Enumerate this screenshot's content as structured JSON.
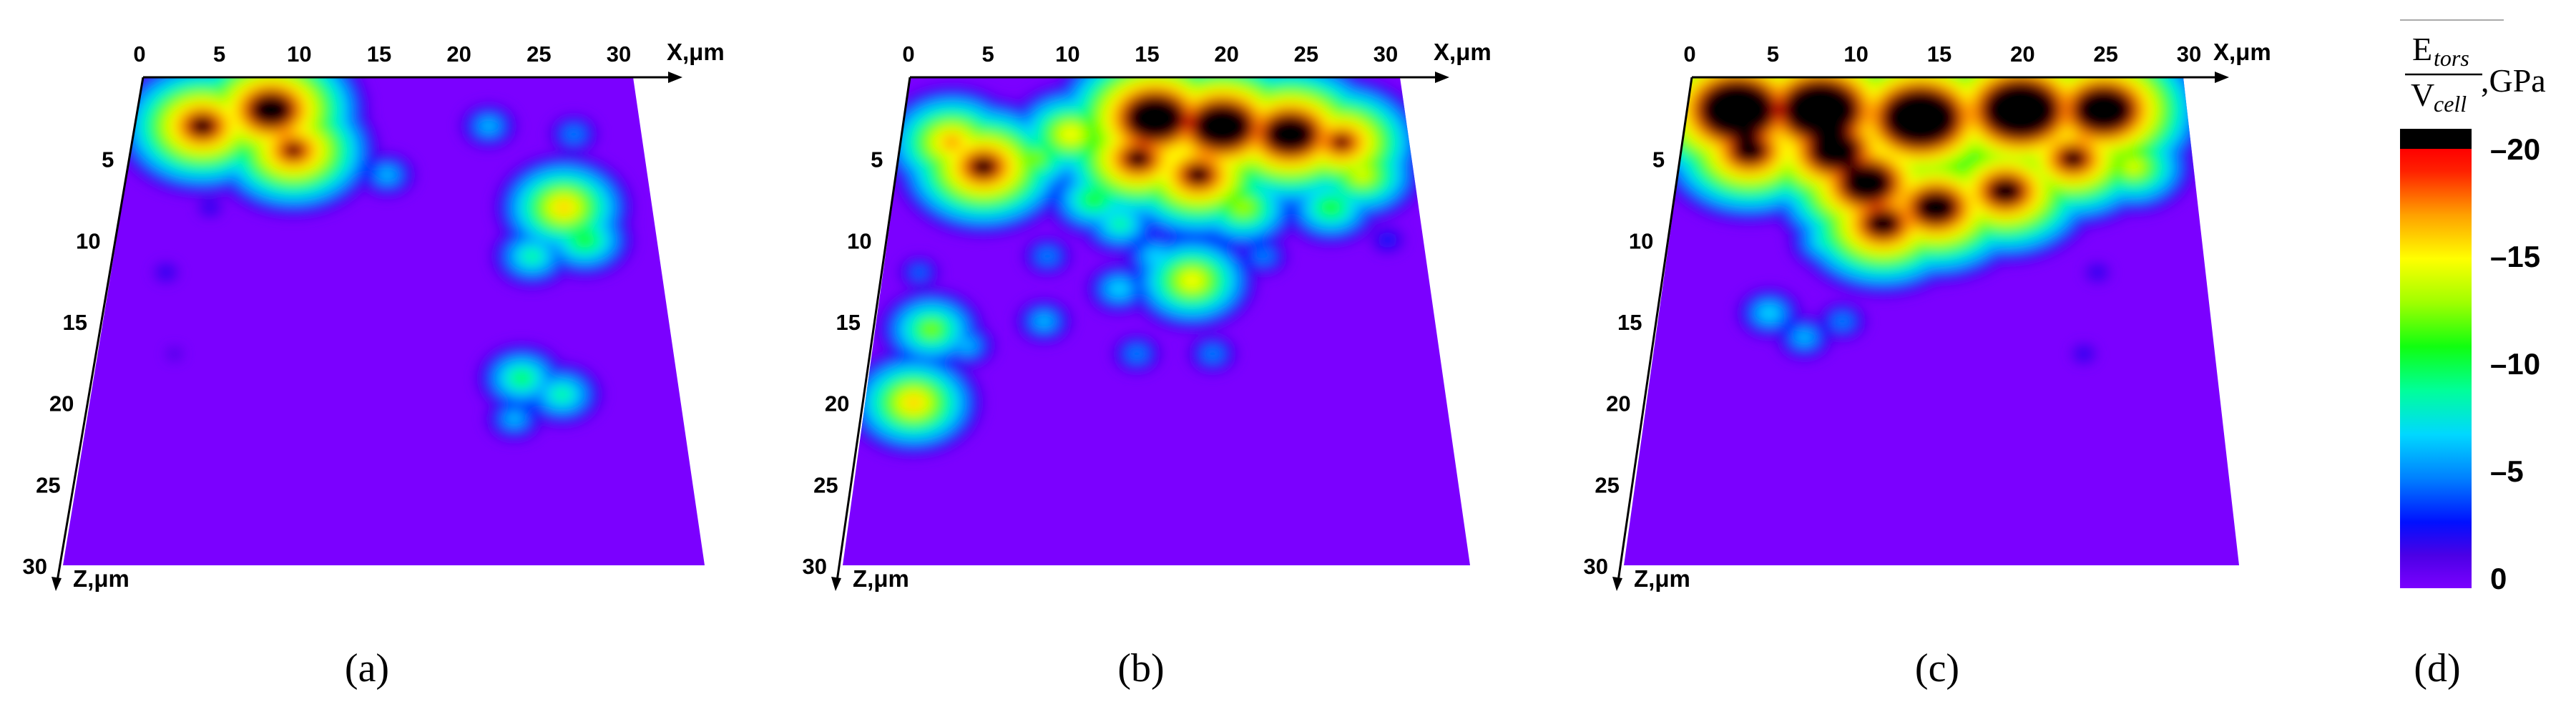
{
  "chart_data": [
    {
      "type": "heatmap",
      "panel_label": "(a)",
      "x_axis": {
        "label": "X,",
        "unit": "μm",
        "ticks": [
          0,
          5,
          10,
          15,
          20,
          25,
          30
        ],
        "range": [
          0,
          30
        ]
      },
      "z_axis": {
        "label": "Z,",
        "unit": "μm",
        "ticks": [
          5,
          10,
          15,
          20,
          25,
          30
        ],
        "range": [
          0,
          30
        ]
      },
      "hotspots": [
        {
          "x": 8,
          "z": 2,
          "value": 24
        },
        {
          "x": 4,
          "z": 3,
          "value": 22
        },
        {
          "x": 9.5,
          "z": 4.5,
          "value": 21
        },
        {
          "x": 12,
          "z": 5,
          "value": 9
        },
        {
          "x": 15,
          "z": 6,
          "value": 7
        },
        {
          "x": 21,
          "z": 3,
          "value": 7
        },
        {
          "x": 26,
          "z": 3.5,
          "value": 6
        },
        {
          "x": 25,
          "z": 8,
          "value": 17
        },
        {
          "x": 26,
          "z": 10,
          "value": 12
        },
        {
          "x": 23,
          "z": 11,
          "value": 10
        },
        {
          "x": 22,
          "z": 18.5,
          "value": 11
        },
        {
          "x": 24,
          "z": 19.5,
          "value": 10
        },
        {
          "x": 21.5,
          "z": 21,
          "value": 7
        },
        {
          "x": 2,
          "z": 6,
          "value": 3
        },
        {
          "x": 5,
          "z": 8,
          "value": 3
        },
        {
          "x": 3,
          "z": 12,
          "value": 3
        },
        {
          "x": 4,
          "z": 17,
          "value": 2
        }
      ]
    },
    {
      "type": "heatmap",
      "panel_label": "(b)",
      "x_axis": {
        "label": "X,",
        "unit": "μm",
        "ticks": [
          0,
          5,
          10,
          15,
          20,
          25,
          30
        ],
        "range": [
          0,
          30
        ]
      },
      "z_axis": {
        "label": "Z,",
        "unit": "μm",
        "ticks": [
          5,
          10,
          15,
          20,
          25,
          30
        ],
        "range": [
          0,
          30
        ]
      },
      "hotspots": [
        {
          "x": 15,
          "z": 2.5,
          "value": 26
        },
        {
          "x": 19,
          "z": 3,
          "value": 26
        },
        {
          "x": 23,
          "z": 3.5,
          "value": 25
        },
        {
          "x": 14,
          "z": 5,
          "value": 22
        },
        {
          "x": 17.5,
          "z": 6,
          "value": 22
        },
        {
          "x": 26,
          "z": 4,
          "value": 21
        },
        {
          "x": 5,
          "z": 5.5,
          "value": 22
        },
        {
          "x": 3,
          "z": 4,
          "value": 18
        },
        {
          "x": 10,
          "z": 3.5,
          "value": 16
        },
        {
          "x": 8,
          "z": 5,
          "value": 13
        },
        {
          "x": 11.5,
          "z": 7.5,
          "value": 12
        },
        {
          "x": 13,
          "z": 9,
          "value": 10
        },
        {
          "x": 20,
          "z": 8,
          "value": 14
        },
        {
          "x": 25,
          "z": 8,
          "value": 12
        },
        {
          "x": 27,
          "z": 6,
          "value": 15
        },
        {
          "x": 17,
          "z": 12.5,
          "value": 16
        },
        {
          "x": 15,
          "z": 11,
          "value": 8
        },
        {
          "x": 2,
          "z": 12,
          "value": 5
        },
        {
          "x": 3,
          "z": 15.5,
          "value": 13
        },
        {
          "x": 5,
          "z": 16.5,
          "value": 7
        },
        {
          "x": 2.5,
          "z": 20,
          "value": 17
        },
        {
          "x": 9,
          "z": 11,
          "value": 6
        },
        {
          "x": 9,
          "z": 15,
          "value": 7
        },
        {
          "x": 13,
          "z": 13,
          "value": 8
        },
        {
          "x": 14,
          "z": 17,
          "value": 6
        },
        {
          "x": 18,
          "z": 17,
          "value": 6
        },
        {
          "x": 21,
          "z": 11,
          "value": 6
        },
        {
          "x": 28,
          "z": 10,
          "value": 4
        }
      ]
    },
    {
      "type": "heatmap",
      "panel_label": "(c)",
      "x_axis": {
        "label": "X,",
        "unit": "μm",
        "ticks": [
          0,
          5,
          10,
          15,
          20,
          25,
          30
        ],
        "range": [
          0,
          30
        ]
      },
      "z_axis": {
        "label": "Z,",
        "unit": "μm",
        "ticks": [
          5,
          10,
          15,
          20,
          25,
          30
        ],
        "range": [
          0,
          30
        ]
      },
      "hotspots": [
        {
          "x": 3,
          "z": 2,
          "value": 28
        },
        {
          "x": 8,
          "z": 2,
          "value": 28
        },
        {
          "x": 14,
          "z": 2.5,
          "value": 28
        },
        {
          "x": 20,
          "z": 2,
          "value": 28
        },
        {
          "x": 25,
          "z": 2,
          "value": 26
        },
        {
          "x": 4,
          "z": 4.5,
          "value": 23
        },
        {
          "x": 9,
          "z": 4.5,
          "value": 25
        },
        {
          "x": 11,
          "z": 6.5,
          "value": 25
        },
        {
          "x": 12,
          "z": 9,
          "value": 23
        },
        {
          "x": 15,
          "z": 8,
          "value": 24
        },
        {
          "x": 19,
          "z": 7,
          "value": 23
        },
        {
          "x": 23,
          "z": 5,
          "value": 22
        },
        {
          "x": 26.5,
          "z": 5.5,
          "value": 15
        },
        {
          "x": 9,
          "z": 10,
          "value": 10
        },
        {
          "x": 6,
          "z": 14.5,
          "value": 8
        },
        {
          "x": 8,
          "z": 16,
          "value": 7
        },
        {
          "x": 10,
          "z": 15,
          "value": 6
        },
        {
          "x": 23,
          "z": 17,
          "value": 3
        },
        {
          "x": 24,
          "z": 12,
          "value": 3
        }
      ]
    },
    {
      "type": "colorbar",
      "panel_label": "(d)",
      "title_numerator": "E",
      "title_numerator_sub": "tors",
      "title_denominator": "V",
      "title_denominator_sub": "cell",
      "title_unit": ",GPa",
      "range": [
        0,
        20
      ],
      "ticks": [
        "0",
        "5",
        "10",
        "15",
        "20"
      ],
      "over_color": "#000000",
      "stops": [
        {
          "value": 0,
          "color": "#7b00ff"
        },
        {
          "value": 1.5,
          "color": "#4b00e6"
        },
        {
          "value": 3,
          "color": "#0010ff"
        },
        {
          "value": 5,
          "color": "#0080ff"
        },
        {
          "value": 7,
          "color": "#00d8ff"
        },
        {
          "value": 9,
          "color": "#00ff9a"
        },
        {
          "value": 11,
          "color": "#10ff10"
        },
        {
          "value": 13,
          "color": "#a0ff00"
        },
        {
          "value": 15,
          "color": "#ffff00"
        },
        {
          "value": 17,
          "color": "#ffa000"
        },
        {
          "value": 19,
          "color": "#ff2000"
        },
        {
          "value": 20,
          "color": "#ff0000"
        }
      ]
    }
  ]
}
